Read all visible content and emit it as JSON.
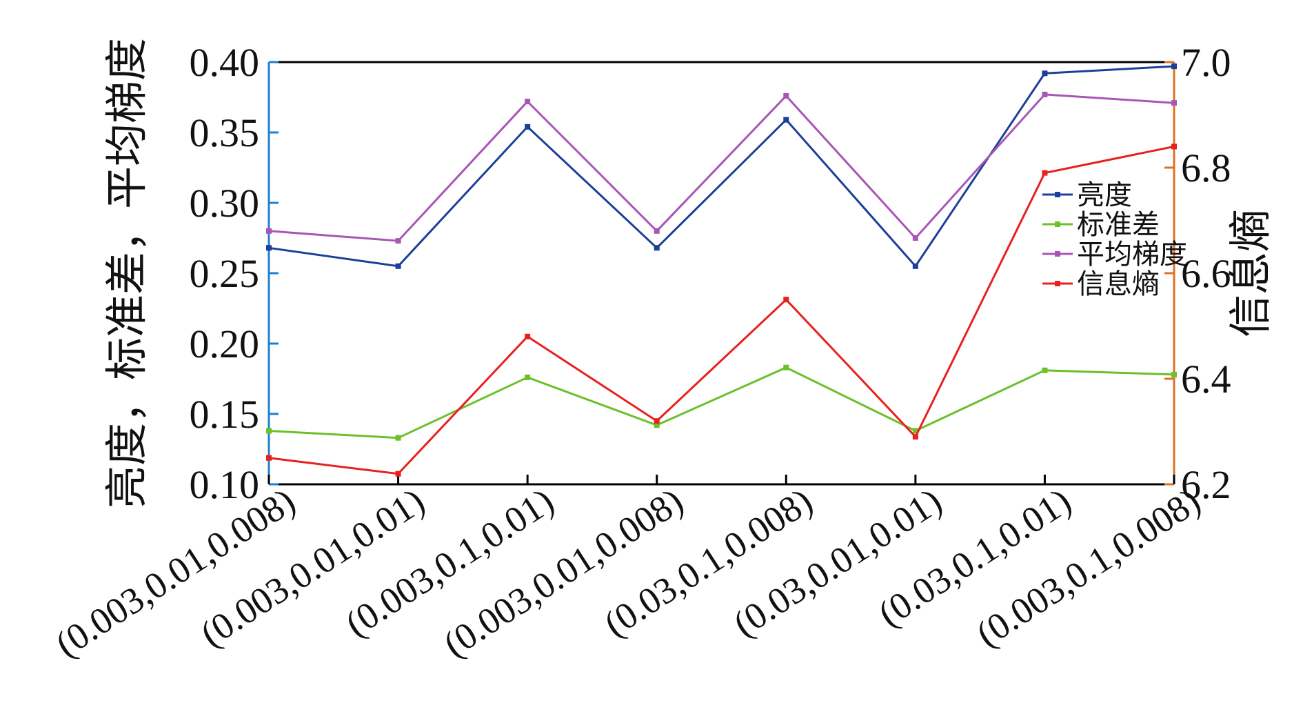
{
  "chart_data": {
    "type": "line",
    "categories": [
      "(0.003,0.01,0.008)",
      "(0.003,0.01,0.01)",
      "(0.003,0.1,0.01)",
      "(0.003,0.01,0.008)",
      "(0.03,0.1,0.008)",
      "(0.03,0.01,0.01)",
      "(0.03,0.1,0.01)",
      "(0.003,0.1,0.008)"
    ],
    "y_left": {
      "label": "亮度，标准差，平均梯度",
      "range": [
        0.1,
        0.4
      ],
      "ticks": [
        "0.10",
        "0.15",
        "0.20",
        "0.25",
        "0.30",
        "0.35",
        "0.40"
      ],
      "color": "#1f7fd0"
    },
    "y_right": {
      "label": "信息熵",
      "range": [
        6.2,
        7.0
      ],
      "ticks": [
        "6.2",
        "6.4",
        "6.6",
        "6.8",
        "7.0"
      ],
      "color": "#e07020"
    },
    "series": [
      {
        "name": "亮度",
        "axis": "left",
        "color": "#1c3f9a",
        "values": [
          0.268,
          0.255,
          0.354,
          0.268,
          0.359,
          0.255,
          0.392,
          0.397
        ]
      },
      {
        "name": "标准差",
        "axis": "left",
        "color": "#6cc02a",
        "values": [
          0.138,
          0.133,
          0.176,
          0.142,
          0.183,
          0.138,
          0.181,
          0.178
        ]
      },
      {
        "name": "平均梯度",
        "axis": "left",
        "color": "#a855b5",
        "values": [
          0.28,
          0.273,
          0.372,
          0.28,
          0.376,
          0.275,
          0.377,
          0.371
        ]
      },
      {
        "name": "信息熵",
        "axis": "right",
        "color": "#e8201e",
        "values": [
          6.25,
          6.22,
          6.48,
          6.32,
          6.55,
          6.29,
          6.79,
          6.84
        ]
      }
    ],
    "legend_position": "right-middle",
    "grid": false
  }
}
